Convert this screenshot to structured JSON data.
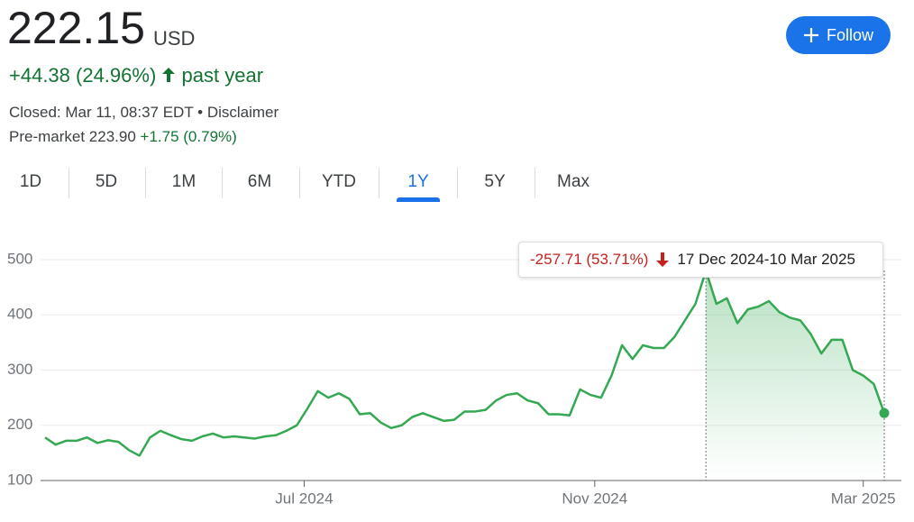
{
  "header": {
    "price": "222.15",
    "currency": "USD",
    "change": "+44.38 (24.96%)",
    "period": "past year",
    "status": "Closed: Mar 11, 08:37 EDT • Disclaimer",
    "premarket": "Pre-market 223.90",
    "premarket_change": "+1.75 (0.79%)"
  },
  "follow_button": "Follow",
  "tabs": [
    "1D",
    "5D",
    "1M",
    "6M",
    "YTD",
    "1Y",
    "5Y",
    "Max"
  ],
  "selected_tab": 5,
  "chart_data": {
    "type": "line",
    "color": "#34a853",
    "values": [
      178,
      165,
      172,
      172,
      178,
      168,
      173,
      170,
      155,
      145,
      178,
      190,
      182,
      175,
      172,
      180,
      185,
      178,
      180,
      178,
      176,
      180,
      182,
      190,
      200,
      230,
      262,
      250,
      258,
      248,
      220,
      222,
      205,
      195,
      200,
      215,
      222,
      215,
      208,
      210,
      225,
      225,
      228,
      245,
      255,
      258,
      245,
      240,
      220,
      220,
      218,
      265,
      255,
      250,
      290,
      345,
      320,
      345,
      340,
      340,
      360,
      390,
      420,
      479.86,
      420,
      430,
      385,
      410,
      415,
      425,
      405,
      395,
      390,
      365,
      330,
      355,
      355,
      300,
      290,
      275,
      222.15
    ],
    "xlim": [
      0,
      80
    ],
    "xticks": [
      {
        "value": 24.7,
        "label": "Jul 2024"
      },
      {
        "value": 52.4,
        "label": "Nov 2024"
      },
      {
        "value": 78,
        "label": "Mar 2025"
      }
    ],
    "ylim": [
      100,
      500
    ],
    "yticks": [
      100,
      200,
      300,
      400,
      500
    ],
    "grid": true,
    "selection": {
      "from": 63,
      "to": 80,
      "change": "-257.71 (53.71%)",
      "dates": "17 Dec 2024-10 Mar 2025"
    }
  }
}
